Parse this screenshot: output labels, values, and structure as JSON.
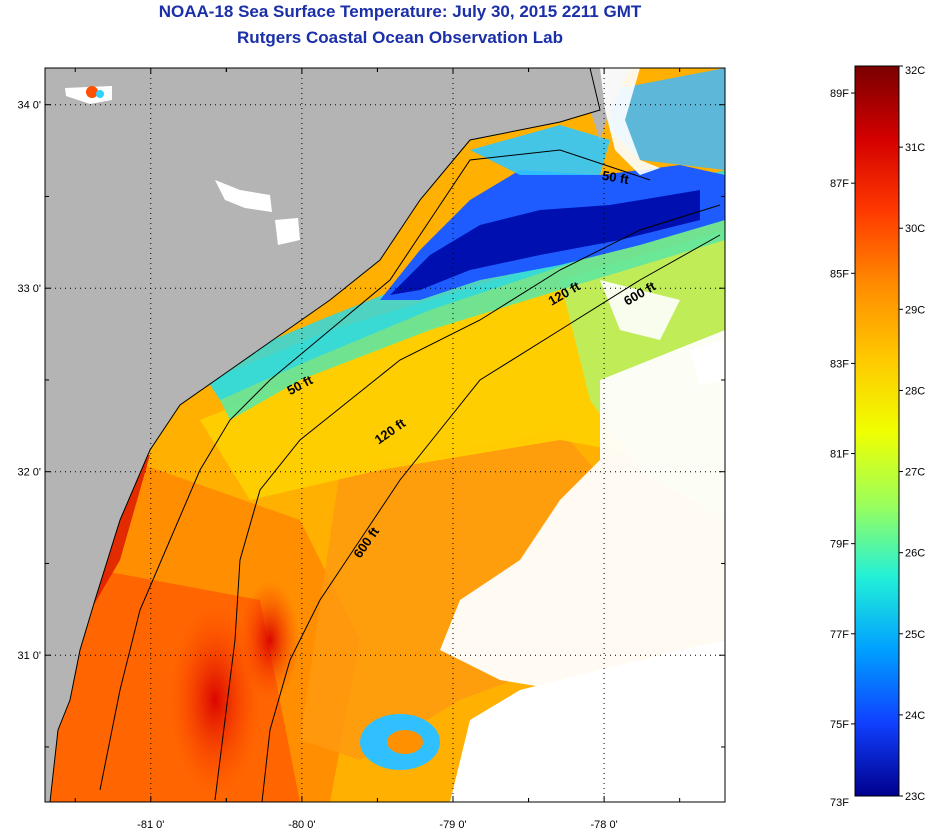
{
  "title": "NOAA-18 Sea Surface Temperature:  July 30, 2015 2211 GMT",
  "subtitle": "Rutgers Coastal Ocean Observation Lab",
  "map": {
    "lon_range": [
      -81.7,
      -77.2
    ],
    "lat_range": [
      30.2,
      34.2
    ],
    "lat_ticks": [
      {
        "value": 34.0,
        "label": "34 0'"
      },
      {
        "value": 33.0,
        "label": "33 0'"
      },
      {
        "value": 32.0,
        "label": "32 0'"
      },
      {
        "value": 31.0,
        "label": "31 0'"
      }
    ],
    "lon_ticks": [
      {
        "value": -81.0,
        "label": "-81 0'"
      },
      {
        "value": -80.0,
        "label": "-80 0'"
      },
      {
        "value": -79.0,
        "label": "-79 0'"
      },
      {
        "value": -78.0,
        "label": "-78 0'"
      }
    ],
    "land_color": "#b4b4b4",
    "cloud_color": "#ffffff",
    "contour_labels": [
      {
        "text": "50 ft",
        "lon": -77.93,
        "lat": 33.58,
        "angle": 10
      },
      {
        "text": "120 ft",
        "lon": -78.25,
        "lat": 32.95,
        "angle": -30
      },
      {
        "text": "600 ft",
        "lon": -77.75,
        "lat": 32.95,
        "angle": -30
      },
      {
        "text": "50 ft",
        "lon": -80.0,
        "lat": 32.45,
        "angle": -28
      },
      {
        "text": "120 ft",
        "lon": -79.4,
        "lat": 32.2,
        "angle": -35
      },
      {
        "text": "600 ft",
        "lon": -79.55,
        "lat": 31.6,
        "angle": -55
      }
    ]
  },
  "colorbar": {
    "min_c": 23,
    "max_c": 32,
    "celsius_ticks": [
      "32C",
      "31C",
      "30C",
      "29C",
      "28C",
      "27C",
      "26C",
      "25C",
      "24C",
      "23C"
    ],
    "fahrenheit_ticks": [
      "89F",
      "87F",
      "85F",
      "83F",
      "81F",
      "79F",
      "77F",
      "75F",
      "73F"
    ],
    "colors": [
      "#7a0000",
      "#d40000",
      "#ff3a00",
      "#ff8c00",
      "#ffc800",
      "#f0ff00",
      "#9cff5a",
      "#22f0d8",
      "#00a0ff",
      "#1040ff",
      "#00008c"
    ]
  }
}
